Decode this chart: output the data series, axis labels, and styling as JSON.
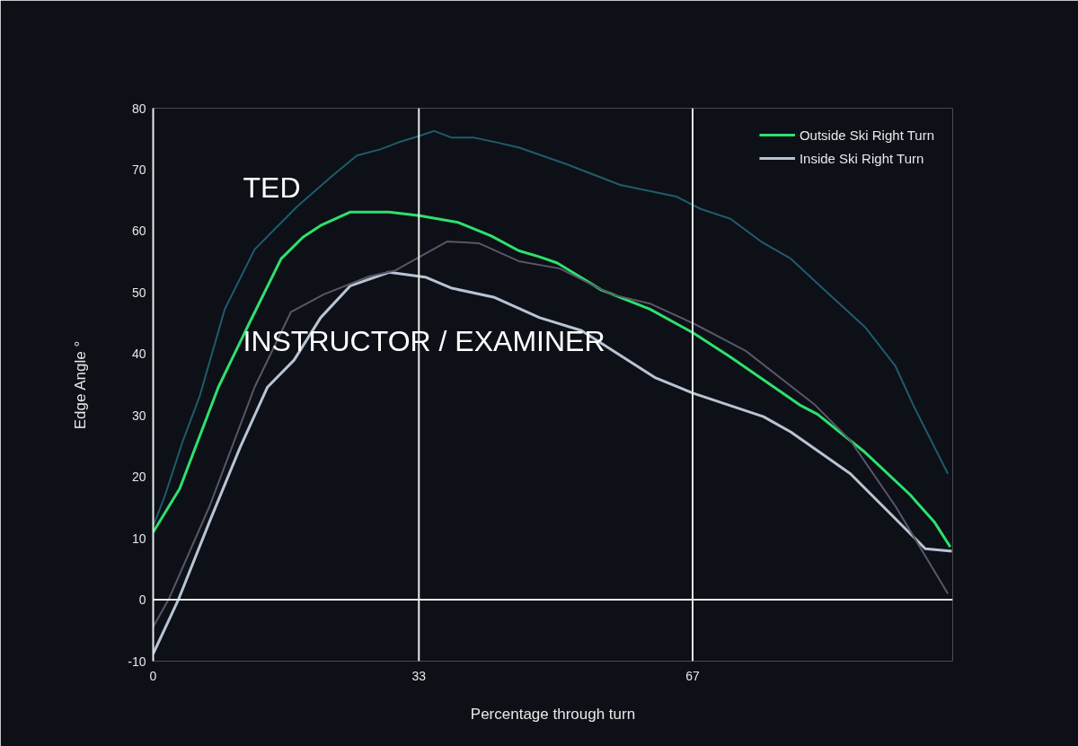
{
  "chart_data": {
    "type": "line",
    "xlabel": "Percentage through turn",
    "ylabel": "Edge Angle °",
    "xlim": [
      0,
      99.3
    ],
    "ylim": [
      -10,
      80
    ],
    "xticks": [
      0,
      33,
      67
    ],
    "yticks": [
      -10,
      0,
      10,
      20,
      30,
      40,
      50,
      60,
      70,
      80
    ],
    "grid": false,
    "legend": "top right",
    "line_style": "solid",
    "marker": "none",
    "ref_lines": [
      {
        "axis": "x",
        "value": 33,
        "color": "#e8e8e8"
      },
      {
        "axis": "x",
        "value": 67,
        "color": "#e8e8e8"
      },
      {
        "axis": "y",
        "value": 0,
        "color": "#e8e8e8"
      }
    ],
    "annotations": [
      "TED",
      "INSTRUCTOR / EXAMINER"
    ],
    "series": [
      {
        "color": "#1f5c6c",
        "x": [
          0,
          1.4,
          3.7,
          5.8,
          8.9,
          12.6,
          17.8,
          22,
          25.3,
          28.2,
          30.4,
          33.1,
          34.9,
          37.1,
          39.8,
          42.4,
          45.4,
          51.3,
          58,
          65,
          68,
          71.7,
          75.5,
          79.2,
          82.8,
          88.4,
          92.2,
          94.4,
          98.7
        ],
        "values": [
          12,
          16.7,
          25.9,
          33.2,
          47.3,
          57,
          63.9,
          68.7,
          72.3,
          73.3,
          74.4,
          75.5,
          76.3,
          75.2,
          75.2,
          74.5,
          73.6,
          70.9,
          67.5,
          65.6,
          63.6,
          62,
          58.3,
          55.5,
          51.1,
          44.4,
          38,
          31.7,
          20.5
        ]
      },
      {
        "color": "#5a5668",
        "x": [
          0,
          1.9,
          7,
          12.6,
          17.1,
          21.2,
          26.8,
          30.1,
          33.1,
          36.5,
          40.5,
          45.4,
          50.5,
          56.9,
          61.7,
          67.2,
          73.6,
          82.2,
          86.6,
          92.2,
          98.7
        ],
        "values": [
          -4.4,
          0,
          15.2,
          34.6,
          46.8,
          49.7,
          52.6,
          53.6,
          55.8,
          58.3,
          58,
          55.1,
          53.9,
          49.7,
          48.2,
          44.9,
          40.5,
          31.7,
          25.9,
          15.2,
          1
        ]
      },
      {
        "name": "Outside Ski Right Turn",
        "color": "#2ee06e",
        "x": [
          0,
          3.3,
          8.1,
          11.9,
          15.9,
          18.6,
          20.8,
          24.5,
          29.3,
          33.1,
          37.9,
          42,
          45.4,
          48,
          50.2,
          55.7,
          61.7,
          67.1,
          71.7,
          80.3,
          82.5,
          88.4,
          94,
          97,
          99
        ],
        "values": [
          11,
          18.1,
          34.6,
          44.9,
          55.5,
          59,
          60.9,
          63.1,
          63.1,
          62.5,
          61.4,
          59.2,
          56.8,
          55.8,
          54.8,
          50.4,
          47.3,
          43.4,
          39.5,
          31.7,
          30.2,
          24,
          17.1,
          12.7,
          8.6
        ]
      },
      {
        "name": "Inside Ski Right Turn",
        "color": "#b8c4d4",
        "x": [
          0,
          3.1,
          7,
          10.8,
          14.2,
          17.5,
          20.8,
          24.5,
          29.3,
          33.8,
          37.1,
          42.4,
          48,
          53.2,
          62.4,
          67.1,
          75.8,
          79.2,
          86.6,
          95.9,
          99.2
        ],
        "values": [
          -8.8,
          -0.1,
          12.7,
          24.8,
          34.6,
          39,
          45.9,
          51.1,
          53.3,
          52.5,
          50.7,
          49.2,
          45.9,
          43.8,
          36.1,
          33.6,
          29.8,
          27.3,
          20.5,
          8.3,
          7.9
        ]
      }
    ]
  }
}
